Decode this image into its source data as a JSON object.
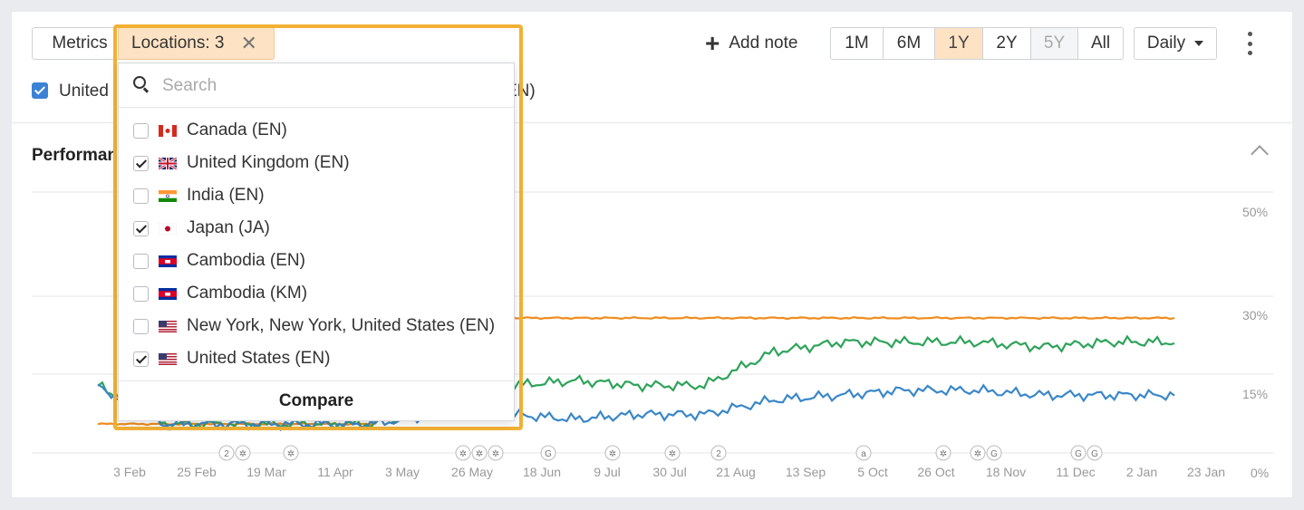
{
  "toolbar": {
    "metrics_label": "Metrics",
    "locations_label": "Locations: 3",
    "locations_clear": "✕",
    "add_note_label": "Add note",
    "add_note_plus": "+",
    "ranges": [
      {
        "label": "1M",
        "state": "normal"
      },
      {
        "label": "6M",
        "state": "normal"
      },
      {
        "label": "1Y",
        "state": "active"
      },
      {
        "label": "2Y",
        "state": "normal"
      },
      {
        "label": "5Y",
        "state": "disabled"
      },
      {
        "label": "All",
        "state": "normal"
      }
    ],
    "interval_label": "Daily"
  },
  "legend_row": {
    "left_text": "United",
    "right_text": "EN)"
  },
  "section": {
    "title": "Performan"
  },
  "dropdown": {
    "search_placeholder": "Search",
    "items": [
      {
        "label": "Canada (EN)",
        "checked": false,
        "flag": "canada-flag-icon"
      },
      {
        "label": "United Kingdom (EN)",
        "checked": true,
        "flag": "uk-flag-icon"
      },
      {
        "label": "India (EN)",
        "checked": false,
        "flag": "india-flag-icon"
      },
      {
        "label": "Japan (JA)",
        "checked": true,
        "flag": "japan-flag-icon"
      },
      {
        "label": "Cambodia (EN)",
        "checked": false,
        "flag": "cambodia-flag-icon"
      },
      {
        "label": "Cambodia (KM)",
        "checked": false,
        "flag": "cambodia-flag-icon"
      },
      {
        "label": "New York, New York, United States (EN)",
        "checked": false,
        "flag": "us-flag-icon"
      },
      {
        "label": "United States (EN)",
        "checked": true,
        "flag": "us-flag-icon"
      }
    ],
    "compare_label": "Compare"
  },
  "chart_data": {
    "type": "line",
    "x": [
      "3 Feb",
      "25 Feb",
      "19 Mar",
      "11 Apr",
      "3 May",
      "26 May",
      "18 Jun",
      "9 Jul",
      "30 Jul",
      "21 Aug",
      "13 Sep",
      "5 Oct",
      "26 Oct",
      "18 Nov",
      "11 Dec",
      "2 Jan",
      "23 Jan"
    ],
    "y_ticks": [
      "50%",
      "30%",
      "15%",
      "0%"
    ],
    "ylim": [
      0,
      50
    ],
    "grid": true,
    "series": [
      {
        "color": "#f08c1e",
        "values": [
          6,
          6,
          6,
          6,
          6,
          28,
          28,
          28,
          28,
          28,
          28,
          28,
          28,
          28,
          28,
          28,
          28
        ]
      },
      {
        "color": "#2ea35a",
        "values": [
          14,
          6,
          6,
          6,
          6,
          10,
          14,
          15,
          14,
          14,
          21,
          23,
          23,
          23,
          22,
          23,
          23
        ]
      },
      {
        "color": "#3a87c8",
        "values": [
          14,
          6,
          6,
          6,
          6,
          8,
          8,
          7,
          8,
          8,
          11,
          12,
          13,
          13,
          12,
          12,
          12
        ]
      }
    ],
    "annotations": [
      {
        "x": "19 Mar",
        "markers": [
          "2",
          "✲"
        ]
      },
      {
        "x": "19 Mar",
        "markers": [
          "✲"
        ]
      },
      {
        "x": "26 May",
        "markers": [
          "✲",
          "✲",
          "✲"
        ]
      },
      {
        "x": "18 Jun",
        "markers": [
          "G"
        ]
      },
      {
        "x": "9 Jul",
        "markers": [
          "✲"
        ]
      },
      {
        "x": "30 Jul",
        "markers": [
          "✲"
        ]
      },
      {
        "x": "21 Aug",
        "markers": [
          "2"
        ]
      },
      {
        "x": "5 Oct",
        "markers": [
          "a"
        ]
      },
      {
        "x": "26 Oct",
        "markers": [
          "✲"
        ]
      },
      {
        "x": "18 Nov",
        "markers": [
          "✲",
          "G"
        ]
      },
      {
        "x": "11 Dec",
        "markers": [
          "G",
          "G"
        ]
      }
    ]
  }
}
